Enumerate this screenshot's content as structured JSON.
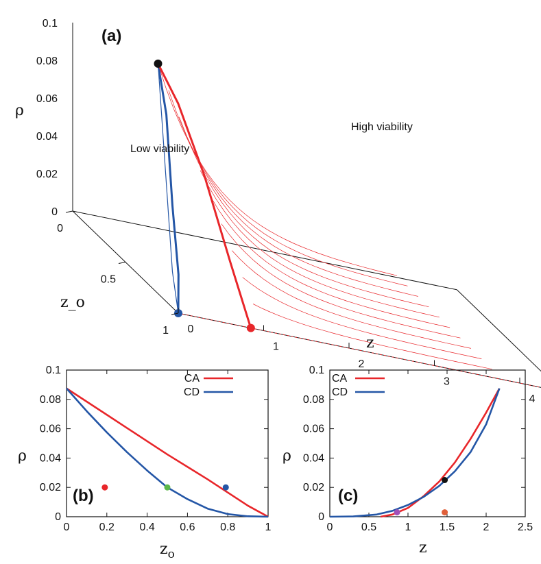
{
  "chart_data": [
    {
      "id": "a",
      "type": "line",
      "projection": "3d",
      "panel_label": "(a)",
      "xlabel": "z",
      "ylabel": "z_o",
      "zlabel": "ρ",
      "x_ticks": [
        "0",
        "1",
        "2",
        "3",
        "4"
      ],
      "y_ticks": [
        "0",
        "0.5",
        "1"
      ],
      "z_ticks": [
        "0",
        "0.02",
        "0.04",
        "0.06",
        "0.08",
        "0.1"
      ],
      "xlim": [
        0,
        4.5
      ],
      "ylim": [
        0,
        1
      ],
      "zlim": [
        0,
        0.1
      ],
      "annotations": [
        "Low viability",
        "High viability"
      ],
      "series": [
        {
          "name": "CD boundary",
          "color": "#2456a6",
          "points": [
            [
              0.0,
              1.0,
              0.0
            ],
            [
              0.25,
              0.8,
              0.012
            ],
            [
              0.55,
              0.5,
              0.035
            ],
            [
              0.85,
              0.2,
              0.07
            ],
            [
              1.0,
              0.0,
              0.0875
            ]
          ]
        },
        {
          "name": "CA boundary",
          "color": "#e8262a",
          "points": [
            [
              0.85,
              1.0,
              0.0
            ],
            [
              0.98,
              0.7,
              0.02
            ],
            [
              1.05,
              0.4,
              0.05
            ],
            [
              1.05,
              0.15,
              0.075
            ],
            [
              1.0,
              0.0,
              0.0875
            ]
          ]
        }
      ],
      "special_points": [
        {
          "name": "peak",
          "color": "#111111",
          "x": 1.0,
          "y": 0.0,
          "z": 0.0875
        },
        {
          "name": "CD endpoint",
          "color": "#2456a6",
          "x": 0.0,
          "y": 1.0,
          "z": 0.0
        },
        {
          "name": "CA endpoint",
          "color": "#e8262a",
          "x": 0.85,
          "y": 1.0,
          "z": 0.0
        }
      ],
      "contours_zo": [
        0.0,
        0.1,
        0.2,
        0.3,
        0.4,
        0.5,
        0.6,
        0.7,
        0.8,
        0.9
      ]
    },
    {
      "id": "b",
      "type": "line",
      "panel_label": "(b)",
      "title": "",
      "xlabel": "z",
      "xlabel_sub": "o",
      "ylabel": "ρ",
      "xlim": [
        0,
        1
      ],
      "ylim": [
        0,
        0.1
      ],
      "x_ticks": [
        "0",
        "0.2",
        "0.4",
        "0.6",
        "0.8",
        "1"
      ],
      "y_ticks": [
        "0",
        "0.02",
        "0.04",
        "0.06",
        "0.08",
        "0.1"
      ],
      "legend": "top-right",
      "series": [
        {
          "name": "CA",
          "color": "#e8262a",
          "x": [
            0,
            0.1,
            0.2,
            0.3,
            0.4,
            0.5,
            0.6,
            0.7,
            0.8,
            0.9,
            1.0
          ],
          "y": [
            0.0875,
            0.0785,
            0.0695,
            0.0605,
            0.0515,
            0.0425,
            0.034,
            0.0255,
            0.0165,
            0.0075,
            0.0
          ]
        },
        {
          "name": "CD",
          "color": "#2456a6",
          "x": [
            0,
            0.1,
            0.2,
            0.3,
            0.4,
            0.5,
            0.6,
            0.7,
            0.8,
            0.9,
            1.0
          ],
          "y": [
            0.0875,
            0.072,
            0.0575,
            0.044,
            0.0315,
            0.02,
            0.012,
            0.0055,
            0.0018,
            0.0003,
            0.0
          ]
        }
      ],
      "points": [
        {
          "color": "#e8262a",
          "x": 0.19,
          "y": 0.02
        },
        {
          "color": "#5cb84a",
          "x": 0.5,
          "y": 0.02
        },
        {
          "color": "#2456a6",
          "x": 0.79,
          "y": 0.02
        }
      ]
    },
    {
      "id": "c",
      "type": "line",
      "panel_label": "(c)",
      "title": "",
      "xlabel": "z",
      "ylabel": "ρ",
      "xlim": [
        0,
        2.5
      ],
      "ylim": [
        0,
        0.1
      ],
      "x_ticks": [
        "0",
        "0.5",
        "1",
        "1.5",
        "2",
        "2.5"
      ],
      "y_ticks": [
        "0",
        "0.02",
        "0.04",
        "0.06",
        "0.08",
        "0.1"
      ],
      "legend": "top-left",
      "series": [
        {
          "name": "CA",
          "color": "#e8262a",
          "x": [
            0.65,
            0.8,
            1.0,
            1.2,
            1.4,
            1.6,
            1.8,
            2.0,
            2.17
          ],
          "y": [
            0.0,
            0.0015,
            0.006,
            0.014,
            0.024,
            0.037,
            0.053,
            0.071,
            0.0875
          ]
        },
        {
          "name": "CD",
          "color": "#2456a6",
          "x": [
            0.0,
            0.3,
            0.6,
            0.8,
            1.0,
            1.2,
            1.4,
            1.6,
            1.8,
            2.0,
            2.17
          ],
          "y": [
            0.0,
            0.0002,
            0.0015,
            0.004,
            0.008,
            0.0135,
            0.021,
            0.031,
            0.044,
            0.063,
            0.0875
          ]
        }
      ],
      "points": [
        {
          "color": "#111111",
          "x": 1.47,
          "y": 0.025
        },
        {
          "color": "#e0603a",
          "x": 1.47,
          "y": 0.003
        },
        {
          "color": "#a050b8",
          "x": 0.86,
          "y": 0.003
        }
      ]
    }
  ]
}
